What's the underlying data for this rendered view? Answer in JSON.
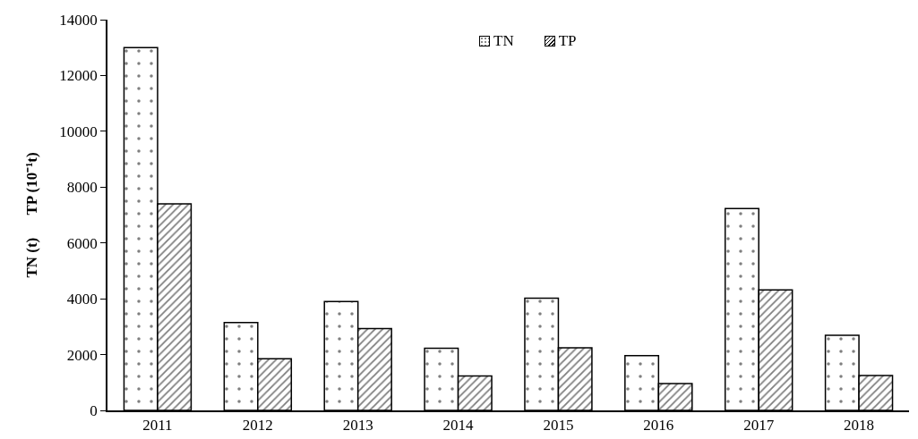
{
  "chart_data": {
    "type": "bar",
    "ylabel": "TN (t)      TP (10⁻¹t)",
    "categories": [
      "2011",
      "2012",
      "2013",
      "2014",
      "2015",
      "2016",
      "2017",
      "2018"
    ],
    "series": [
      {
        "name": "TN",
        "color": "#000000",
        "values": [
          13000,
          3150,
          3900,
          2230,
          4020,
          1960,
          7230,
          2690
        ]
      },
      {
        "name": "TP",
        "color": "#000000",
        "values": [
          7400,
          1850,
          2930,
          1230,
          2240,
          960,
          4320,
          1250
        ]
      }
    ],
    "ylim": [
      0,
      14000
    ],
    "yticks": [
      0,
      2000,
      4000,
      6000,
      8000,
      10000,
      12000,
      14000
    ],
    "grid": false,
    "legend": "top"
  }
}
